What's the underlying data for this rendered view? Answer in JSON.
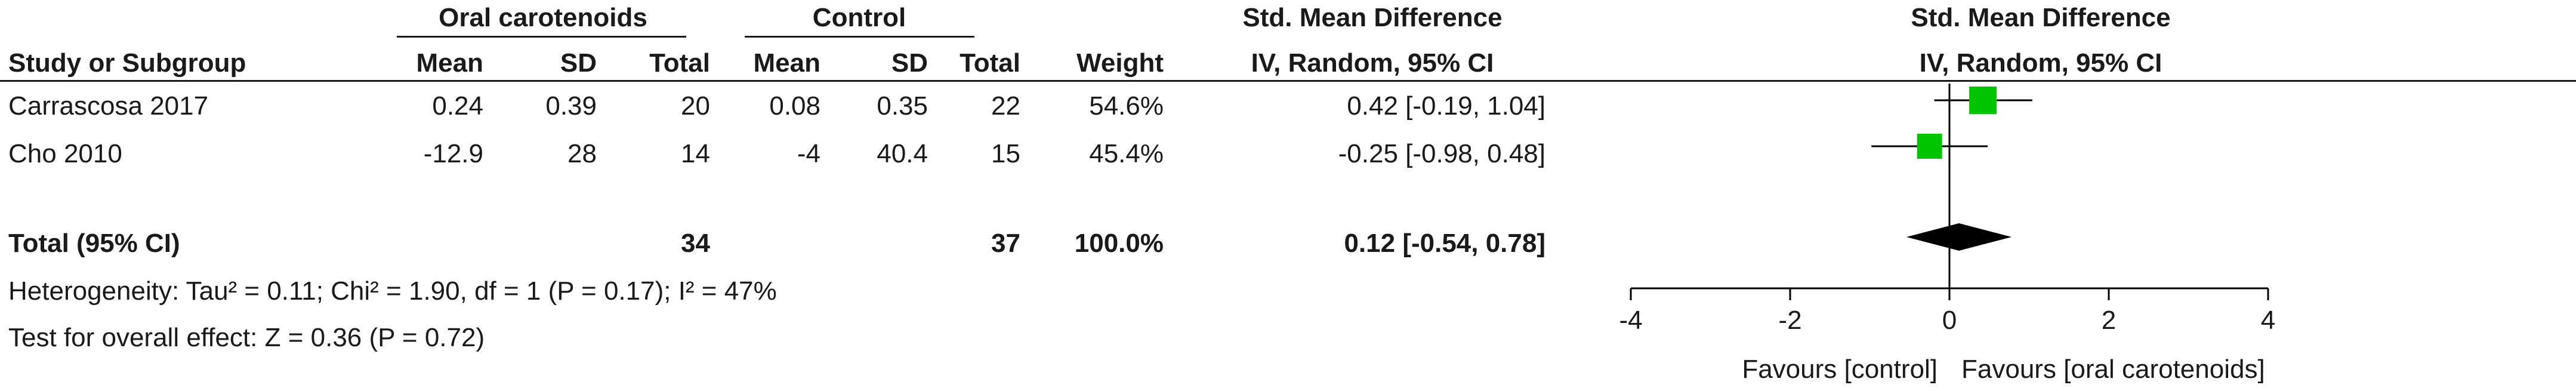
{
  "header": {
    "group1": "Oral carotenoids",
    "group2": "Control",
    "effect_measure": "Std. Mean Difference",
    "study_col": "Study or Subgroup",
    "mean": "Mean",
    "sd": "SD",
    "total": "Total",
    "weight": "Weight",
    "method": "IV, Random, 95% CI",
    "plot_title": "Std. Mean Difference",
    "plot_method": "IV, Random, 95% CI"
  },
  "studies": [
    {
      "name": "Carrascosa 2017",
      "mean1": "0.24",
      "sd1": "0.39",
      "n1": "20",
      "mean2": "0.08",
      "sd2": "0.35",
      "n2": "22",
      "weight": "54.6%",
      "ci_text": "0.42 [-0.19, 1.04]"
    },
    {
      "name": "Cho 2010",
      "mean1": "-12.9",
      "sd1": "28",
      "n1": "14",
      "mean2": "-4",
      "sd2": "40.4",
      "n2": "15",
      "weight": "45.4%",
      "ci_text": "-0.25 [-0.98, 0.48]"
    }
  ],
  "total": {
    "label": "Total (95% CI)",
    "n1": "34",
    "n2": "37",
    "weight": "100.0%",
    "ci_text": "0.12 [-0.54, 0.78]"
  },
  "heterogeneity": "Heterogeneity: Tau² = 0.11; Chi² = 1.90, df = 1 (P = 0.17); I² = 47%",
  "overall_effect": "Test for overall effect: Z = 0.36 (P = 0.72)",
  "axis": {
    "favours_left": "Favours [control]",
    "favours_right": "Favours [oral carotenoids]"
  },
  "colors": {
    "study_marker": "#00c400",
    "summary": "#000000",
    "text": "#1a1a1a"
  },
  "chart_data": {
    "type": "scatter",
    "title": "Std. Mean Difference",
    "subtitle": "IV, Random, 95% CI",
    "xlim": [
      -4,
      4
    ],
    "xticks": [
      -4,
      -2,
      0,
      2,
      4
    ],
    "reference_line": 0,
    "grid": false,
    "points": [
      {
        "label": "Carrascosa 2017",
        "estimate": 0.42,
        "lower": -0.19,
        "upper": 1.04,
        "weight": 54.6
      },
      {
        "label": "Cho 2010",
        "estimate": -0.25,
        "lower": -0.98,
        "upper": 0.48,
        "weight": 45.4
      }
    ],
    "summary": {
      "label": "Total (95% CI)",
      "estimate": 0.12,
      "lower": -0.54,
      "upper": 0.78
    }
  }
}
